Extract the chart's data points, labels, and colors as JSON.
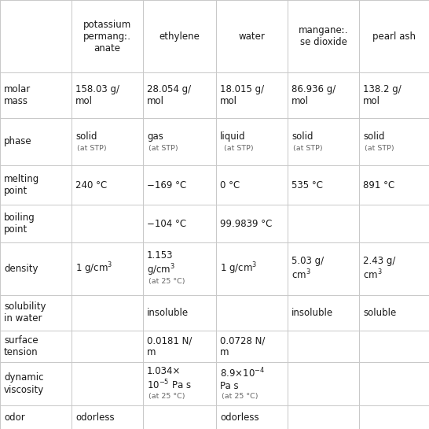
{
  "col_headers": [
    "",
    "potassium\npermangː.\nanate",
    "ethylene",
    "water",
    "manganeː.\nse dioxide",
    "pearl ash"
  ],
  "row_labels": [
    "molar\nmass",
    "phase",
    "melting\npoint",
    "boiling\npoint",
    "density",
    "solubility\nin water",
    "surface\ntension",
    "dynamic\nviscosity",
    "odor"
  ],
  "cells": [
    [
      "158.03 g/\nmol",
      "28.054 g/\nmol",
      "18.015 g/\nmol",
      "86.936 g/\nmol",
      "138.2 g/\nmol"
    ],
    [
      "solid|(at STP)",
      "gas|(at STP)",
      "liquid| (at STP)",
      "solid|(at STP)",
      "solid|(at STP)"
    ],
    [
      "240 °C",
      "−169 °C",
      "0 °C",
      "535 °C",
      "891 °C"
    ],
    [
      "",
      "−104 °C",
      "99.9839 °C",
      "",
      ""
    ],
    [
      "1 g/cm$^3$",
      "1.153\ng/cm$^3$|(at 25 °C)",
      "1 g/cm$^3$",
      "5.03 g/\ncm$^3$",
      "2.43 g/\ncm$^3$"
    ],
    [
      "",
      "insoluble",
      "",
      "insoluble",
      "soluble"
    ],
    [
      "",
      "0.0181 N/\nm",
      "0.0728 N/\nm",
      "",
      ""
    ],
    [
      "",
      "1.034×\n10$^{-5}$ Pa s|(at 25 °C)",
      "8.9×10$^{-4}$\nPa s|(at 25 °C)",
      "",
      ""
    ],
    [
      "odorless",
      "",
      "odorless",
      "",
      ""
    ]
  ],
  "bg_color": "#ffffff",
  "grid_color": "#c8c8c8",
  "text_color": "#1a1a1a",
  "small_text_color": "#666666",
  "main_fontsize": 8.5,
  "small_fontsize": 6.8,
  "header_fontsize": 8.5
}
